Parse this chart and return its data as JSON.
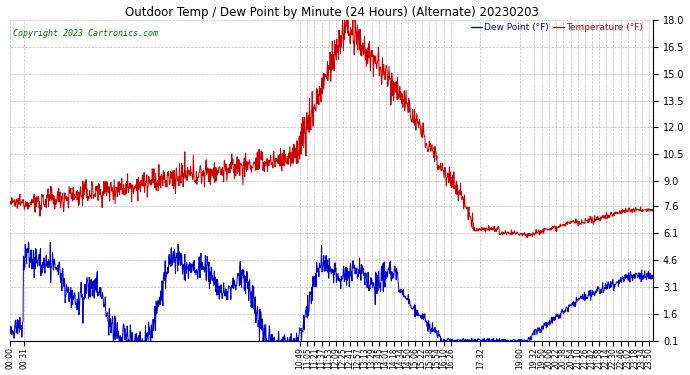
{
  "title": "Outdoor Temp / Dew Point by Minute (24 Hours) (Alternate) 20230203",
  "copyright": "Copyright 2023 Cartronics.com",
  "legend_dew": "Dew Point (°F)",
  "legend_temp": "Temperature (°F)",
  "ylim_min": 0.1,
  "ylim_max": 18.0,
  "yticks": [
    0.1,
    1.6,
    3.1,
    4.6,
    6.1,
    7.6,
    9.0,
    10.5,
    12.0,
    13.5,
    15.0,
    16.5,
    18.0
  ],
  "bg_color": "#ffffff",
  "grid_color": "#bbbbbb",
  "temp_color": "#cc0000",
  "dew_color": "#0000cc",
  "title_color": "#000000",
  "copyright_color": "#007700",
  "legend_dew_color": "#0000cc",
  "legend_temp_color": "#cc0000",
  "xtick_labels": [
    "00:00",
    "00:31",
    "10:49",
    "11:05",
    "11:21",
    "11:37",
    "11:53",
    "12:09",
    "12:25",
    "12:41",
    "12:57",
    "13:13",
    "13:29",
    "13:45",
    "14:01",
    "14:18",
    "14:34",
    "14:50",
    "15:06",
    "15:22",
    "15:38",
    "15:54",
    "16:10",
    "16:26",
    "17:32",
    "19:00",
    "19:32",
    "19:50",
    "20:06",
    "20:22",
    "20:38",
    "20:54",
    "21:10",
    "21:26",
    "21:42",
    "21:58",
    "22:14",
    "22:30",
    "22:46",
    "23:02",
    "23:18",
    "23:34",
    "23:50"
  ]
}
